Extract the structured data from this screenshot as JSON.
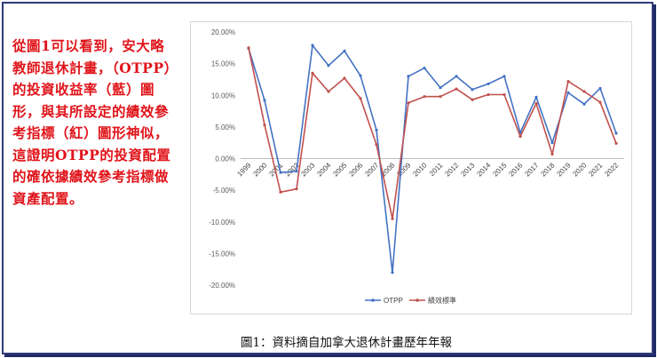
{
  "note_text": "從圖1可以看到，安大略教師退休計畫，（OTPP）的投資收益率（藍）圖形，與其所設定的績效參考指標（紅）圖形神似，這證明OTPP的投資配置的確依據績效參考指標做資產配置。",
  "caption": "圖1：資料摘自加拿大退休計畫歷年年報",
  "colors": {
    "otpp": "#4472c4",
    "benchmark": "#c0504d",
    "frame": "#2e3a78",
    "note": "#e0141a"
  },
  "chart_data": {
    "type": "line",
    "categories": [
      "1999",
      "2000",
      "2001",
      "2002",
      "2003",
      "2004",
      "2005",
      "2006",
      "2007",
      "2008",
      "2009",
      "2010",
      "2011",
      "2012",
      "2013",
      "2014",
      "2015",
      "2016",
      "2017",
      "2018",
      "2019",
      "2020",
      "2021",
      "2022"
    ],
    "series": [
      {
        "name": "OTPP",
        "values": [
          17.4,
          9.2,
          -2.2,
          -2.0,
          17.9,
          14.7,
          17.0,
          13.1,
          4.5,
          -18.0,
          13.0,
          14.3,
          11.2,
          13.0,
          10.9,
          11.8,
          13.0,
          4.1,
          9.7,
          2.5,
          10.4,
          8.6,
          11.1,
          4.0
        ]
      },
      {
        "name": "績效標準",
        "values": [
          17.5,
          5.3,
          -5.3,
          -4.8,
          13.5,
          10.6,
          12.7,
          9.5,
          2.2,
          -9.5,
          8.8,
          9.8,
          9.8,
          11.0,
          9.3,
          10.1,
          10.1,
          3.5,
          8.7,
          0.7,
          12.2,
          10.6,
          8.9,
          2.4
        ]
      }
    ],
    "y_ticks": [
      "20.00%",
      "15.00%",
      "10.00%",
      "5.00%",
      "0.00%",
      "-5.00%",
      "-10.00%",
      "-15.00%",
      "-20.00%"
    ],
    "ylim": [
      -20,
      20
    ],
    "title": "",
    "xlabel": "",
    "ylabel": "",
    "grid": false,
    "legend_position": "bottom"
  }
}
